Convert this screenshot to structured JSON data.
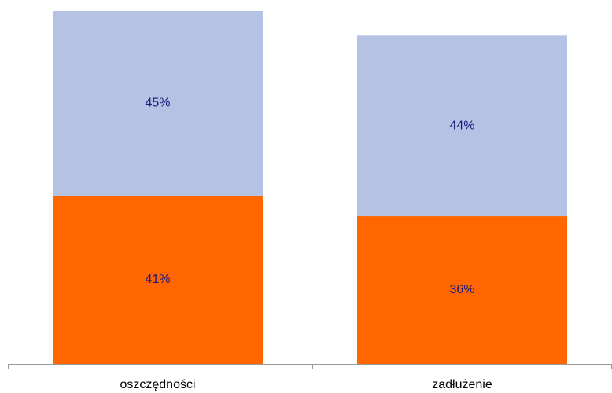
{
  "chart_data": {
    "type": "stacked_bar",
    "categories": [
      "oszczędności",
      "zadłużenie"
    ],
    "series": [
      {
        "color": "#ff6600",
        "values": [
          41,
          36
        ],
        "value_labels": [
          "41%",
          "36%"
        ]
      },
      {
        "color": "#b4c3e3",
        "values": [
          45,
          44
        ],
        "value_labels": [
          "45%",
          "44%"
        ]
      }
    ]
  }
}
